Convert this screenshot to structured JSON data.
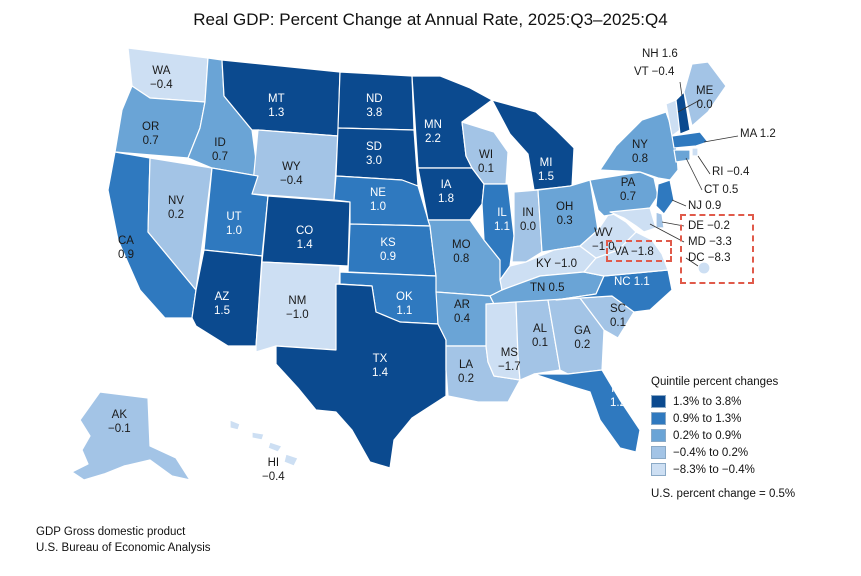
{
  "title": "Real GDP: Percent Change at Annual Rate, 2025:Q3–2025:Q4",
  "colors": {
    "q1": "#0b4a8f",
    "q2": "#2f79bf",
    "q3": "#6aa4d6",
    "q4": "#a3c4e6",
    "q5": "#cddff3",
    "callout": "#e05a4a"
  },
  "states": {
    "WA": {
      "name": "WA",
      "value": "−0.4"
    },
    "OR": {
      "name": "OR",
      "value": "0.7"
    },
    "CA": {
      "name": "CA",
      "value": "0.9"
    },
    "NV": {
      "name": "NV",
      "value": "0.2"
    },
    "ID": {
      "name": "ID",
      "value": "0.7"
    },
    "MT": {
      "name": "MT",
      "value": "1.3"
    },
    "WY": {
      "name": "WY",
      "value": "−0.4"
    },
    "UT": {
      "name": "UT",
      "value": "1.0"
    },
    "CO": {
      "name": "CO",
      "value": "1.4"
    },
    "AZ": {
      "name": "AZ",
      "value": "1.5"
    },
    "NM": {
      "name": "NM",
      "value": "−1.0"
    },
    "ND": {
      "name": "ND",
      "value": "3.8"
    },
    "SD": {
      "name": "SD",
      "value": "3.0"
    },
    "NE": {
      "name": "NE",
      "value": "1.0"
    },
    "KS": {
      "name": "KS",
      "value": "0.9"
    },
    "OK": {
      "name": "OK",
      "value": "1.1"
    },
    "TX": {
      "name": "TX",
      "value": "1.4"
    },
    "MN": {
      "name": "MN",
      "value": "2.2"
    },
    "IA": {
      "name": "IA",
      "value": "1.8"
    },
    "MO": {
      "name": "MO",
      "value": "0.8"
    },
    "AR": {
      "name": "AR",
      "value": "0.4"
    },
    "LA": {
      "name": "LA",
      "value": "0.2"
    },
    "WI": {
      "name": "WI",
      "value": "0.1"
    },
    "IL": {
      "name": "IL",
      "value": "1.1"
    },
    "MI": {
      "name": "MI",
      "value": "1.5"
    },
    "IN": {
      "name": "IN",
      "value": "0.0"
    },
    "OH": {
      "name": "OH",
      "value": "0.3"
    },
    "KY": {
      "name": "KY",
      "value": "−1.0"
    },
    "TN": {
      "name": "TN",
      "value": "0.5"
    },
    "MS": {
      "name": "MS",
      "value": "−1.7"
    },
    "AL": {
      "name": "AL",
      "value": "0.1"
    },
    "GA": {
      "name": "GA",
      "value": "0.2"
    },
    "FL": {
      "name": "FL",
      "value": "1.2"
    },
    "SC": {
      "name": "SC",
      "value": "0.1"
    },
    "NC": {
      "name": "NC",
      "value": "1.1"
    },
    "VA": {
      "name": "VA",
      "value": "−1.8"
    },
    "WV": {
      "name": "WV",
      "value": "−1.0"
    },
    "PA": {
      "name": "PA",
      "value": "0.7"
    },
    "NY": {
      "name": "NY",
      "value": "0.8"
    },
    "ME": {
      "name": "ME",
      "value": "0.0"
    },
    "NH": {
      "name": "NH",
      "value": "1.6"
    },
    "VT": {
      "name": "VT",
      "value": "−0.4"
    },
    "MA": {
      "name": "MA",
      "value": "1.2"
    },
    "RI": {
      "name": "RI",
      "value": "−0.4"
    },
    "CT": {
      "name": "CT",
      "value": "0.5"
    },
    "NJ": {
      "name": "NJ",
      "value": "0.9"
    },
    "DE": {
      "name": "DE",
      "value": "−0.2"
    },
    "MD": {
      "name": "MD",
      "value": "−3.3"
    },
    "DC": {
      "name": "DC",
      "value": "−8.3"
    },
    "AK": {
      "name": "AK",
      "value": "−0.1"
    },
    "HI": {
      "name": "HI",
      "value": "−0.4"
    }
  },
  "inline_labels": {
    "NH": "NH 1.6",
    "VT": "VT −0.4",
    "MA": "MA 1.2",
    "RI": "RI −0.4",
    "CT": "CT 0.5",
    "NJ": "NJ 0.9",
    "DE": "DE −0.2",
    "MD": "MD −3.3",
    "DC": "DC −8.3",
    "VA": "VA −1.8",
    "TN": "TN 0.5",
    "KY": "KY −1.0",
    "NC": "NC 1.1"
  },
  "legend": {
    "title": "Quintile percent changes",
    "items": [
      {
        "label": "1.3% to 3.8%"
      },
      {
        "label": "0.9% to 1.3%"
      },
      {
        "label": "0.2% to 0.9%"
      },
      {
        "label": "−0.4% to 0.2%"
      },
      {
        "label": "−8.3% to −0.4%"
      }
    ]
  },
  "us_note": "U.S. percent change = 0.5%",
  "footer": {
    "line1": "GDP Gross domestic product",
    "line2": "U.S. Bureau of Economic Analysis"
  }
}
